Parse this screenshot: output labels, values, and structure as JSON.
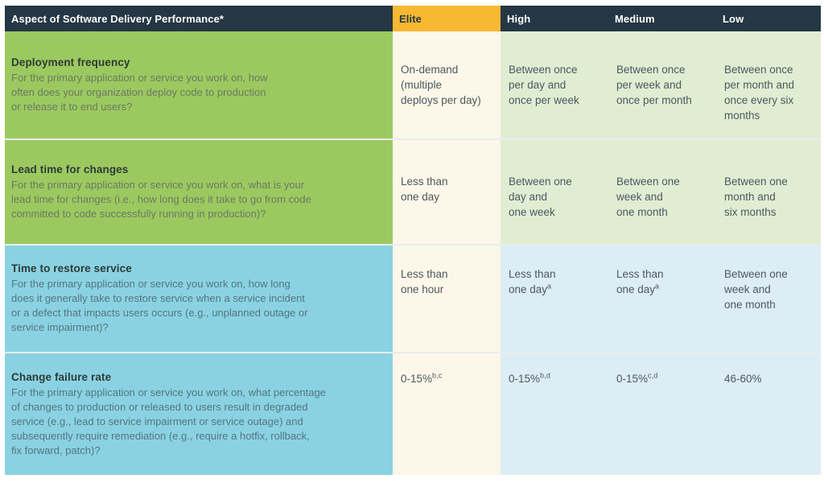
{
  "header": {
    "aspect_label": "Aspect of Software Delivery Performance*",
    "levels": [
      "Elite",
      "High",
      "Medium",
      "Low"
    ]
  },
  "colors": {
    "navy": "#253744",
    "yellow": "#F8B831",
    "green": "#9CC95F",
    "blue": "#8AD2E2",
    "cream": "#FCF7E8",
    "lightGreen": "#E1EDD2",
    "lightBlue": "#DCEEF4",
    "divider": "#E7EDEE",
    "titleText": "#2D3B38",
    "descGreen": "#6A7A63",
    "descBlue": "#537680",
    "cellText": "#4C5860"
  },
  "rows": [
    {
      "title": "Deployment frequency",
      "description": "For the primary application or service you work on, how\noften does your organization deploy code to production\nor release it to end users?",
      "cells": [
        {
          "text": "On-demand\n(multiple\ndeploys per day)",
          "sup": ""
        },
        {
          "text": "Between once\nper day and\nonce per week",
          "sup": ""
        },
        {
          "text": "Between once\nper week and\nonce per month",
          "sup": ""
        },
        {
          "text": "Between once\nper month and\nonce every six\nmonths",
          "sup": ""
        }
      ]
    },
    {
      "title": "Lead time for changes",
      "description": "For the primary application or service you work on, what is your\nlead time for changes (i.e., how long does it take to go from code\ncommitted to code successfully running in production)?",
      "cells": [
        {
          "text": "Less than\none day",
          "sup": ""
        },
        {
          "text": "Between one\nday and\none week",
          "sup": ""
        },
        {
          "text": "Between one\nweek and\none month",
          "sup": ""
        },
        {
          "text": "Between one\nmonth and\nsix months",
          "sup": ""
        }
      ]
    },
    {
      "title": "Time to restore service",
      "description": "For the primary application or service you work on, how long\ndoes it generally take to restore service when a service incident\nor a defect that impacts users occurs (e.g., unplanned outage or\nservice impairment)?",
      "cells": [
        {
          "text": "Less than\none hour",
          "sup": ""
        },
        {
          "text": "Less than\none day",
          "sup": "a"
        },
        {
          "text": "Less than\none day",
          "sup": "a"
        },
        {
          "text": "Between one\nweek and\none month",
          "sup": ""
        }
      ]
    },
    {
      "title": "Change failure rate",
      "description": "For the primary application or service you work on, what percentage\nof changes to production or released to users result in degraded\nservice (e.g., lead to service impairment or service outage) and\nsubsequently require remediation (e.g., require a hotfix, rollback,\nfix forward, patch)?",
      "cells": [
        {
          "text": "0-15%",
          "sup": "b,c"
        },
        {
          "text": "0-15%",
          "sup": "b,d"
        },
        {
          "text": "0-15%",
          "sup": "c,d"
        },
        {
          "text": "46-60%",
          "sup": ""
        }
      ]
    }
  ]
}
